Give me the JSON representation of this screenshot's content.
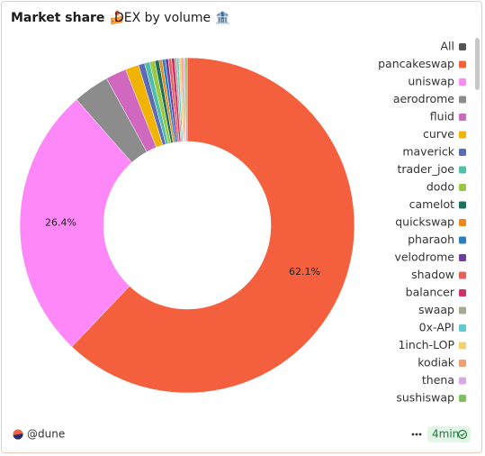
{
  "chart_data": {
    "type": "pie",
    "title": "Market share 🍰",
    "subtitle": "DEX by volume 🏦",
    "categories": [
      "pancakeswap",
      "uniswap",
      "aerodrome",
      "fluid",
      "curve",
      "maverick",
      "trader_joe",
      "dodo",
      "camelot",
      "quickswap",
      "pharaoh",
      "velodrome",
      "shadow",
      "balancer",
      "swaap",
      "0x-API",
      "1inch-LOP",
      "kodiak",
      "thena",
      "sushiswap"
    ],
    "values": [
      62.1,
      26.4,
      3.5,
      2.0,
      1.3,
      0.6,
      0.5,
      0.5,
      0.4,
      0.3,
      0.3,
      0.3,
      0.3,
      0.3,
      0.2,
      0.2,
      0.2,
      0.2,
      0.2,
      0.2
    ],
    "value_labels": [
      "62.1%",
      "26.4%",
      null,
      null,
      null,
      null,
      null,
      null,
      null,
      null,
      null,
      null,
      null,
      null,
      null,
      null,
      null,
      null,
      null,
      null
    ],
    "colors": [
      "#f4603e",
      "#ff88f8",
      "#8c8c8c",
      "#d068c0",
      "#f0b400",
      "#5b6bb8",
      "#4fbfa8",
      "#9ac842",
      "#1f6e5e",
      "#e88a1a",
      "#2a7fc0",
      "#6a3fa0",
      "#e8605a",
      "#d0306a",
      "#a8a890",
      "#60c8d0",
      "#f4d070",
      "#f0a070",
      "#d8a8e8",
      "#80c060"
    ],
    "legend_toggle": {
      "label": "All",
      "color": "#555555"
    },
    "legend": "right",
    "donut": true
  },
  "footer": {
    "source": "@dune",
    "age": "4min"
  }
}
